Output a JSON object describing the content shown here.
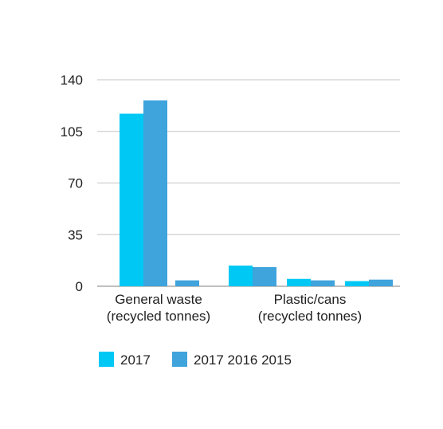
{
  "chart_data": {
    "type": "bar",
    "title": "",
    "xlabel": "",
    "ylabel": "",
    "ylim": [
      0,
      140
    ],
    "yticks": [
      0,
      35,
      70,
      105,
      140
    ],
    "grid": true,
    "legend_position": "bottom-left",
    "categories": [
      [
        "General waste",
        "(recycled tonnes)"
      ],
      [
        "Plastic/cans",
        "(recycled tonnes)"
      ]
    ],
    "bar_groups": [
      {
        "category_index": 0,
        "values": [
          117,
          126
        ],
        "colors": [
          "#00c8f5",
          "#3fa3dc"
        ]
      },
      {
        "category_index": 0,
        "values": [
          4
        ],
        "colors": [
          "#3fa3dc"
        ]
      },
      {
        "category_index": 1,
        "values": [
          14,
          13
        ],
        "colors": [
          "#00c8f5",
          "#3fa3dc"
        ]
      },
      {
        "category_index": 1,
        "values": [
          5,
          4
        ],
        "colors": [
          "#00c8f5",
          "#3fa3dc"
        ]
      },
      {
        "category_index": 1,
        "values": [
          3.5,
          4.5
        ],
        "colors": [
          "#00c8f5",
          "#3fa3dc"
        ]
      }
    ],
    "legend": [
      {
        "label": "2017",
        "color": "#00c8f5"
      },
      {
        "label": "2017 2016 2015",
        "color": "#3fa3dc"
      }
    ]
  }
}
